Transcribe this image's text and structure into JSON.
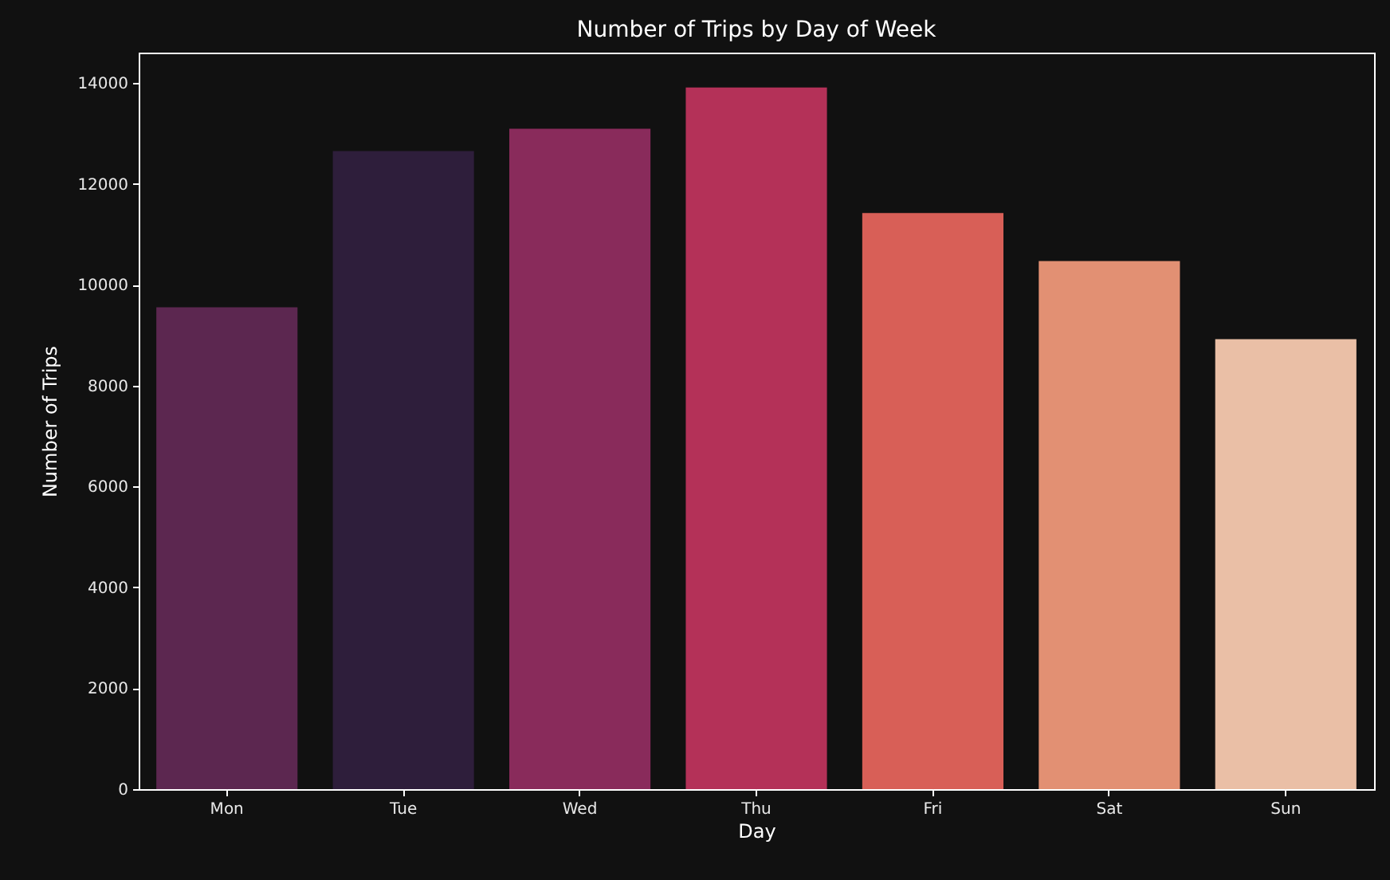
{
  "chart_data": {
    "type": "bar",
    "title": "Number of Trips by Day of Week",
    "xlabel": "Day",
    "ylabel": "Number of Trips",
    "categories": [
      "Mon",
      "Tue",
      "Wed",
      "Thu",
      "Fri",
      "Sat",
      "Sun"
    ],
    "values": [
      9550,
      12650,
      13090,
      13910,
      11420,
      10470,
      8920
    ],
    "colors": [
      "#5c2750",
      "#2e1e3b",
      "#892b5b",
      "#b43158",
      "#d85f57",
      "#e29073",
      "#eabfa6"
    ],
    "ylim": [
      0,
      14600
    ],
    "yticks": [
      0,
      2000,
      4000,
      6000,
      8000,
      10000,
      12000,
      14000
    ]
  }
}
